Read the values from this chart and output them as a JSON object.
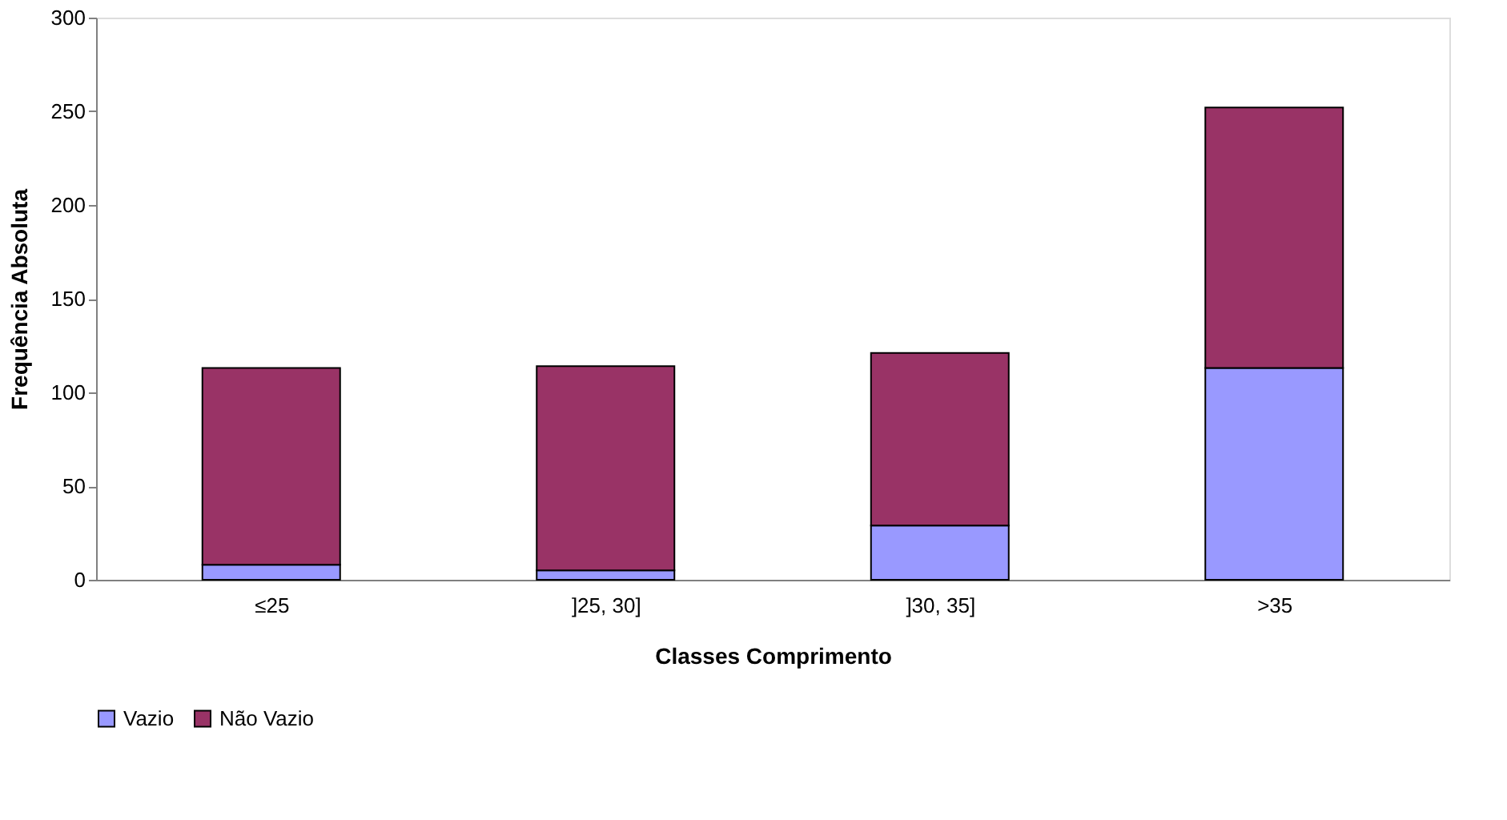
{
  "chart_data": {
    "type": "bar",
    "stacked": true,
    "xlabel": "Classes Comprimento",
    "ylabel": "Frequência Absoluta",
    "categories": [
      "≤25",
      "]25, 30]",
      "]30, 35]",
      ">35"
    ],
    "series": [
      {
        "name": "Vazio",
        "color": "#9999ff",
        "values": [
          8,
          5,
          29,
          113
        ]
      },
      {
        "name": "Não Vazio",
        "color": "#993366",
        "values": [
          105,
          109,
          92,
          139
        ]
      }
    ],
    "ylim": [
      0,
      300
    ],
    "yticks": [
      0,
      50,
      100,
      150,
      200,
      250,
      300
    ],
    "grid": false,
    "legend": "bottom"
  }
}
